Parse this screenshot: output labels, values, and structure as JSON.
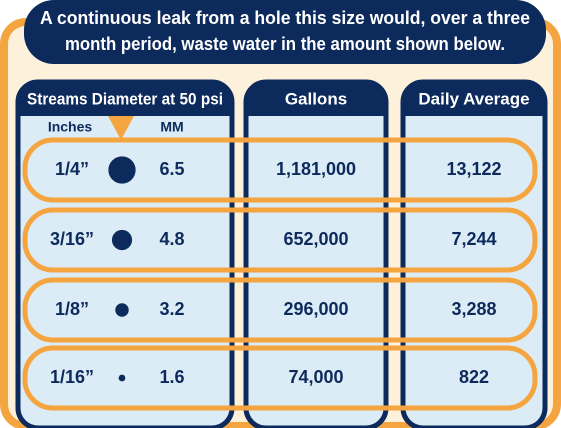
{
  "header": {
    "lines": [
      "A continuous leak from a hole this size would, over a three",
      "month period, waste water in the amount shown below."
    ]
  },
  "table": {
    "columns": [
      "Streams Diameter at 50 psi",
      "Gallons",
      "Daily Average"
    ],
    "subcolumns": [
      "Inches",
      "MM"
    ],
    "rows": [
      {
        "inches": "1/4”",
        "mm": 6.5,
        "gallons": "1,181,000",
        "daily": "13,122"
      },
      {
        "inches": "3/16”",
        "mm": 4.8,
        "gallons": "652,000",
        "daily": "7,244"
      },
      {
        "inches": "1/8”",
        "mm": 3.2,
        "gallons": "296,000",
        "daily": "3,288"
      },
      {
        "inches": "1/16”",
        "mm": 1.6,
        "gallons": "74,000",
        "daily": "822"
      }
    ]
  }
}
